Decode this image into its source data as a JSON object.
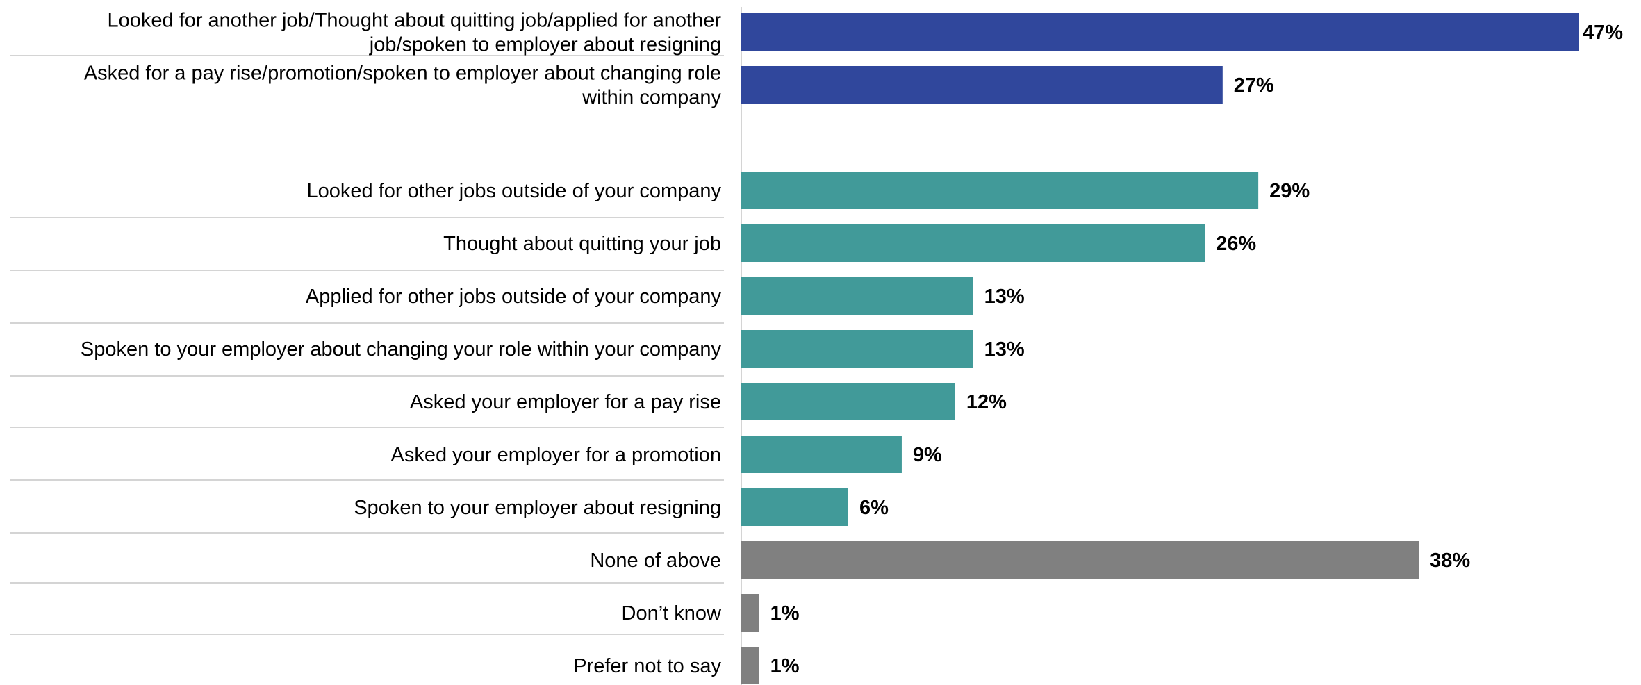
{
  "chart_data": {
    "type": "bar",
    "orientation": "horizontal",
    "title": "",
    "xlabel": "",
    "ylabel": "",
    "value_suffix": "%",
    "xlim": [
      0,
      47
    ],
    "grid": false,
    "legend": "none",
    "colors": {
      "summary": "#30479c",
      "detail": "#419a99",
      "other": "#808080",
      "separator": "#d4d4d4"
    },
    "categories": [
      [
        "Looked for another job/Thought about quitting job/applied for another",
        "job/spoken to employer about resigning"
      ],
      [
        "Asked for a pay rise/promotion/spoken to employer about changing role",
        "within company"
      ],
      [
        "Looked for other jobs outside of your company"
      ],
      [
        "Thought about quitting your job"
      ],
      [
        "Applied for other jobs outside of your company"
      ],
      [
        "Spoken to your employer about changing your role within your company"
      ],
      [
        "Asked your employer for a pay rise"
      ],
      [
        "Asked your employer for a promotion"
      ],
      [
        "Spoken to your employer about resigning"
      ],
      [
        "None of above"
      ],
      [
        "Don’t know"
      ],
      [
        "Prefer not to say"
      ]
    ],
    "values": [
      47,
      27,
      29,
      26,
      13,
      13,
      12,
      9,
      6,
      38,
      1,
      1
    ],
    "value_labels": [
      "47%",
      "27%",
      "29%",
      "26%",
      "13%",
      "13%",
      "12%",
      "9%",
      "6%",
      "38%",
      "1%",
      "1%"
    ],
    "groups": [
      "summary",
      "summary",
      "detail",
      "detail",
      "detail",
      "detail",
      "detail",
      "detail",
      "detail",
      "other",
      "other",
      "other"
    ]
  }
}
